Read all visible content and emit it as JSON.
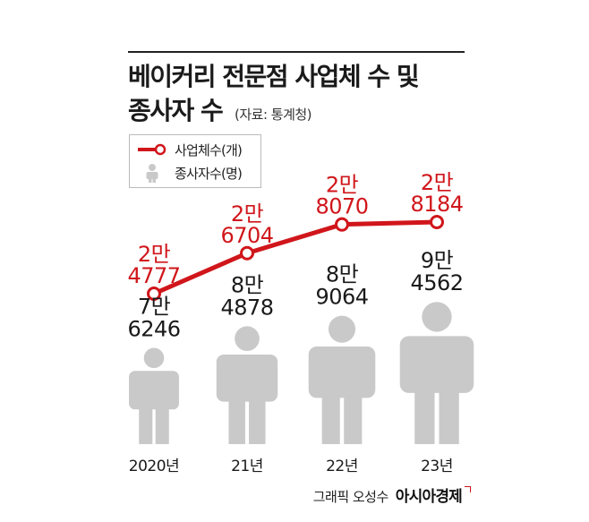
{
  "title_line1": "베이커리 전문점 사업체 수 및",
  "title_line2": "종사자 수",
  "source": "(자료: 통계청)",
  "legend": {
    "businesses": "사업체수(개)",
    "employees": "종사자수(명)"
  },
  "credit": {
    "by": "그래픽 오성수",
    "brand": "아시아경제"
  },
  "colors": {
    "line": "#d0161b",
    "person": "#c9c9c9",
    "text": "#1a1a1a"
  },
  "chart_data": {
    "type": "line",
    "categories": [
      "2020년",
      "21년",
      "22년",
      "23년"
    ],
    "series": [
      {
        "name": "사업체수(개)",
        "values": [
          24777,
          26704,
          28070,
          28184
        ],
        "labels": [
          [
            "2만",
            "4777"
          ],
          [
            "2만",
            "6704"
          ],
          [
            "2만",
            "8070"
          ],
          [
            "2만",
            "8184"
          ]
        ]
      },
      {
        "name": "종사자수(명)",
        "values": [
          76246,
          84878,
          89064,
          94562
        ],
        "labels": [
          [
            "7만",
            "6246"
          ],
          [
            "8만",
            "4878"
          ],
          [
            "8만",
            "9064"
          ],
          [
            "9만",
            "4562"
          ]
        ]
      }
    ]
  }
}
